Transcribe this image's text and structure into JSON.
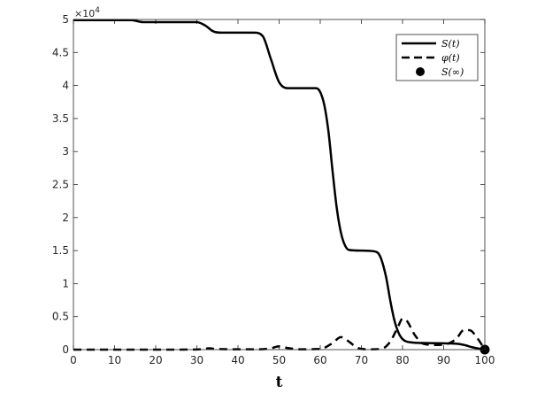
{
  "chart_data": {
    "type": "line",
    "title": "",
    "xlabel": "t",
    "ylabel": "",
    "y_multiplier": "×10",
    "y_multiplier_exponent": "4",
    "xlim": [
      0,
      100
    ],
    "ylim": [
      0,
      50000
    ],
    "x_ticks": [
      0,
      10,
      20,
      30,
      40,
      50,
      60,
      70,
      80,
      90,
      100
    ],
    "y_ticks": [
      0,
      5000,
      10000,
      15000,
      20000,
      25000,
      30000,
      35000,
      40000,
      45000,
      50000
    ],
    "y_tick_labels": [
      "0",
      "0.5",
      "1",
      "1.5",
      "2",
      "2.5",
      "3",
      "3.5",
      "4",
      "4.5",
      "5"
    ],
    "grid": false,
    "legend_position": "top-right",
    "series": [
      {
        "name": "S(t)",
        "style": "solid",
        "color": "#000000",
        "points": [
          [
            0,
            49900
          ],
          [
            5,
            49900
          ],
          [
            10,
            49900
          ],
          [
            14,
            49900
          ],
          [
            17,
            49600
          ],
          [
            20,
            49600
          ],
          [
            25,
            49600
          ],
          [
            30,
            49600
          ],
          [
            32,
            49100
          ],
          [
            34,
            48200
          ],
          [
            36,
            48000
          ],
          [
            40,
            48000
          ],
          [
            44,
            48000
          ],
          [
            46,
            47500
          ],
          [
            48,
            44000
          ],
          [
            50,
            40500
          ],
          [
            52,
            39600
          ],
          [
            56,
            39600
          ],
          [
            59,
            39600
          ],
          [
            60,
            39000
          ],
          [
            61,
            37000
          ],
          [
            62,
            33000
          ],
          [
            63,
            27000
          ],
          [
            64,
            21500
          ],
          [
            65,
            17800
          ],
          [
            66,
            15800
          ],
          [
            67,
            15100
          ],
          [
            70,
            15000
          ],
          [
            73,
            14900
          ],
          [
            74.5,
            14200
          ],
          [
            76,
            11000
          ],
          [
            77,
            7500
          ],
          [
            78,
            4500
          ],
          [
            79,
            2600
          ],
          [
            80,
            1600
          ],
          [
            82,
            1100
          ],
          [
            85,
            1000
          ],
          [
            90,
            950
          ],
          [
            93,
            900
          ],
          [
            95,
            700
          ],
          [
            97,
            350
          ],
          [
            99,
            100
          ],
          [
            100,
            20
          ]
        ]
      },
      {
        "name": "φ(t)",
        "style": "dashed",
        "color": "#000000",
        "points": [
          [
            0,
            0
          ],
          [
            10,
            0
          ],
          [
            20,
            0
          ],
          [
            30,
            20
          ],
          [
            33,
            200
          ],
          [
            35,
            80
          ],
          [
            45,
            50
          ],
          [
            48,
            200
          ],
          [
            50,
            500
          ],
          [
            52,
            250
          ],
          [
            55,
            50
          ],
          [
            60,
            100
          ],
          [
            63,
            1000
          ],
          [
            65,
            1900
          ],
          [
            67,
            1200
          ],
          [
            69,
            300
          ],
          [
            72,
            50
          ],
          [
            75,
            150
          ],
          [
            77,
            1200
          ],
          [
            79,
            3600
          ],
          [
            80,
            4700
          ],
          [
            81,
            4400
          ],
          [
            83,
            2200
          ],
          [
            85,
            900
          ],
          [
            88,
            700
          ],
          [
            91,
            900
          ],
          [
            93,
            1600
          ],
          [
            95,
            3000
          ],
          [
            96.5,
            2900
          ],
          [
            98,
            1900
          ],
          [
            100,
            30
          ]
        ]
      },
      {
        "name": "S(∞)",
        "style": "marker",
        "color": "#000000",
        "points": [
          [
            100,
            0
          ]
        ]
      }
    ]
  }
}
